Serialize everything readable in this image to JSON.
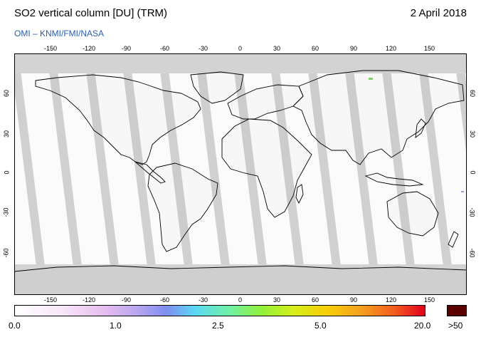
{
  "header": {
    "title": "SO2 vertical column [DU] (TRM)",
    "date": "2 April 2018",
    "credits": "OMI  –  KNMI/FMI/NASA"
  },
  "map": {
    "lon_ticks": [
      "-150",
      "-120",
      "-90",
      "-60",
      "-30",
      "0",
      "30",
      "60",
      "90",
      "120",
      "150"
    ],
    "lat_ticks": [
      "60",
      "30",
      "0",
      "-30",
      "-60"
    ],
    "colors": {
      "ocean_nodata": "#d3d3d3",
      "land": "#a2a2a2",
      "swath_gap": "#d0d0d0",
      "valid_data": "#ffffff",
      "coast": "#000000"
    }
  },
  "colorbar": {
    "labels": [
      "0.0",
      "1.0",
      "2.5",
      "5.0",
      "20.0"
    ],
    "overflow_label": ">50",
    "overflow_color": "#5a0000"
  }
}
